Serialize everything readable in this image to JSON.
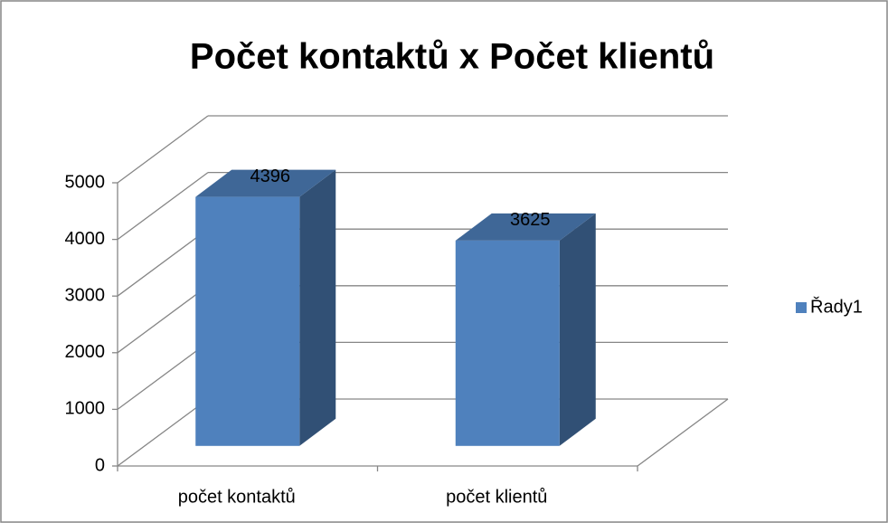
{
  "chart_data": {
    "type": "bar3d",
    "title": "Počet kontaktů x Počet klientů",
    "categories": [
      "počet kontaktů",
      "počet klientů"
    ],
    "series": [
      {
        "name": "Řady1",
        "color": "#4f81bd",
        "values": [
          4396,
          3625
        ]
      }
    ],
    "ylim": [
      0,
      5000
    ],
    "yticks": [
      0,
      1000,
      2000,
      3000,
      4000,
      5000
    ],
    "grid": true,
    "legend": "right"
  }
}
